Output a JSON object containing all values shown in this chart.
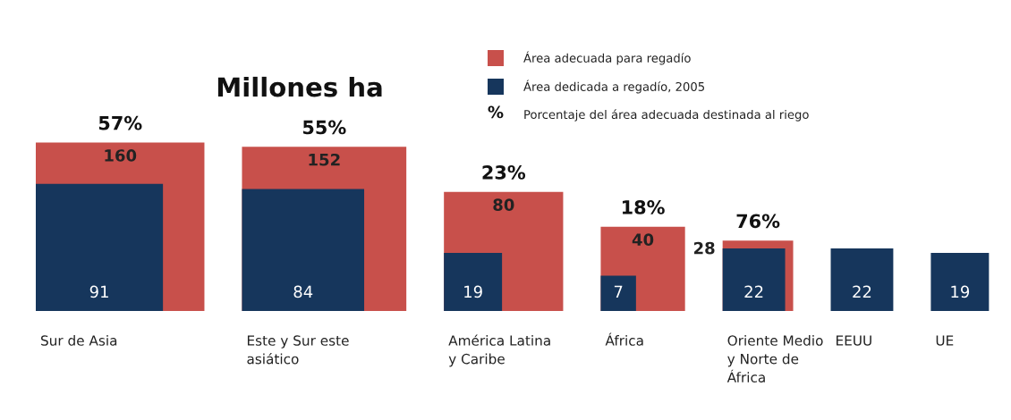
{
  "chart_data": {
    "type": "other",
    "title": "Millones ha",
    "categories": [
      "Sur de Asia",
      "Este y Sur este\nasiático",
      "América Latina\ny Caribe",
      "África",
      "Oriente Medio\ny Norte de\nÁfrica",
      "EEUU",
      "UE"
    ],
    "series": [
      {
        "name": "Área adecuada para regadío",
        "color": "#c8504b",
        "values": [
          160,
          152,
          80,
          40,
          28,
          null,
          null
        ]
      },
      {
        "name": "Área dedicada a regadío, 2005",
        "color": "#16365c",
        "values": [
          91,
          84,
          19,
          7,
          22,
          22,
          19
        ]
      },
      {
        "name": "Porcentaje del área adecuada destinada al riego",
        "values": [
          57,
          55,
          23,
          18,
          76,
          null,
          null
        ],
        "value_labels": [
          "57%",
          "55%",
          "23%",
          "18%",
          "76%",
          null,
          null
        ]
      }
    ],
    "annotations": [
      "%"
    ],
    "data_labels": true,
    "legend": "top"
  }
}
